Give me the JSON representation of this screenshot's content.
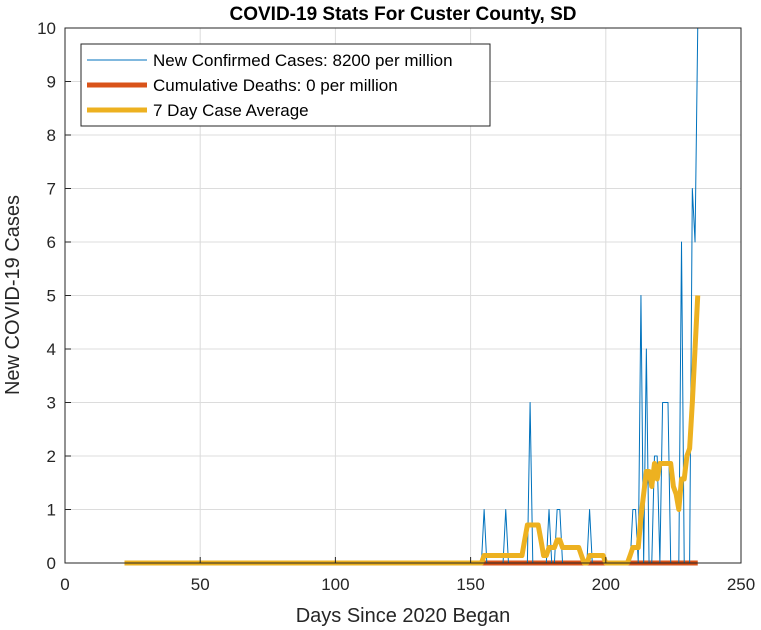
{
  "chart_data": {
    "type": "line",
    "title": "COVID-19 Stats For Custer County, SD",
    "xlabel": "Days Since 2020 Began",
    "ylabel": "New COVID-19 Cases",
    "xlim": [
      0,
      250
    ],
    "ylim": [
      0,
      10
    ],
    "xticks": [
      0,
      50,
      100,
      150,
      200,
      250
    ],
    "yticks": [
      0,
      1,
      2,
      3,
      4,
      5,
      6,
      7,
      8,
      9,
      10
    ],
    "grid": true,
    "legend_position": "top-left",
    "series": [
      {
        "name": "New Confirmed Cases: 8200 per million",
        "color": "#0072BD",
        "style": "thin",
        "x": [
          22,
          154,
          155,
          156,
          157,
          158,
          162,
          163,
          164,
          165,
          170,
          171,
          172,
          173,
          178,
          179,
          180,
          181,
          182,
          183,
          184,
          185,
          186,
          193,
          194,
          195,
          196,
          209,
          210,
          211,
          212,
          213,
          214,
          215,
          216,
          217,
          218,
          219,
          220,
          221,
          222,
          223,
          224,
          225,
          226,
          227,
          228,
          229,
          230,
          231,
          232,
          233,
          234
        ],
        "y": [
          0,
          0,
          1,
          0,
          0,
          0,
          0,
          1,
          0,
          0,
          0,
          0,
          3,
          0,
          0,
          1,
          0,
          0,
          1,
          1,
          0,
          0,
          0,
          0,
          1,
          0,
          0,
          0,
          1,
          1,
          0,
          5,
          0,
          4,
          0,
          0,
          2,
          2,
          0,
          3,
          3,
          3,
          0,
          0,
          0,
          0,
          6,
          0,
          0,
          0,
          7,
          6,
          10
        ]
      },
      {
        "name": "Cumulative Deaths: 0 per million",
        "color": "#D95319",
        "style": "thick",
        "x": [
          154,
          234
        ],
        "y": [
          0,
          0
        ]
      },
      {
        "name": "7 Day Case Average",
        "color": "#EDB120",
        "style": "thick",
        "x": [
          22,
          154,
          155,
          157,
          162,
          163,
          165,
          169,
          170,
          171,
          172,
          174,
          175,
          176,
          177,
          178,
          179,
          180,
          181,
          182,
          183,
          184,
          185,
          186,
          188,
          190,
          191,
          192,
          193,
          194,
          195,
          197,
          199,
          200,
          202,
          204,
          206,
          208,
          209,
          210,
          212,
          213,
          214,
          215,
          216,
          217,
          218,
          219,
          220,
          221,
          222,
          223,
          224,
          225,
          226,
          227,
          228,
          229,
          230,
          231,
          232,
          233,
          234
        ],
        "y": [
          0,
          0,
          0.14,
          0.14,
          0.14,
          0.14,
          0.14,
          0.14,
          0.43,
          0.71,
          0.71,
          0.71,
          0.71,
          0.43,
          0.14,
          0.14,
          0.29,
          0.29,
          0.29,
          0.43,
          0.43,
          0.29,
          0.29,
          0.29,
          0.29,
          0.29,
          0.14,
          0,
          0,
          0.14,
          0.14,
          0.14,
          0.14,
          0,
          0,
          0,
          0,
          0,
          0.14,
          0.29,
          0.29,
          0.86,
          1.29,
          1.71,
          1.71,
          1.43,
          1.86,
          1.57,
          1.86,
          1.86,
          1.86,
          1.86,
          1.86,
          1.43,
          1.29,
          1,
          1.57,
          1.57,
          2,
          2.14,
          3,
          4,
          5
        ]
      }
    ]
  }
}
